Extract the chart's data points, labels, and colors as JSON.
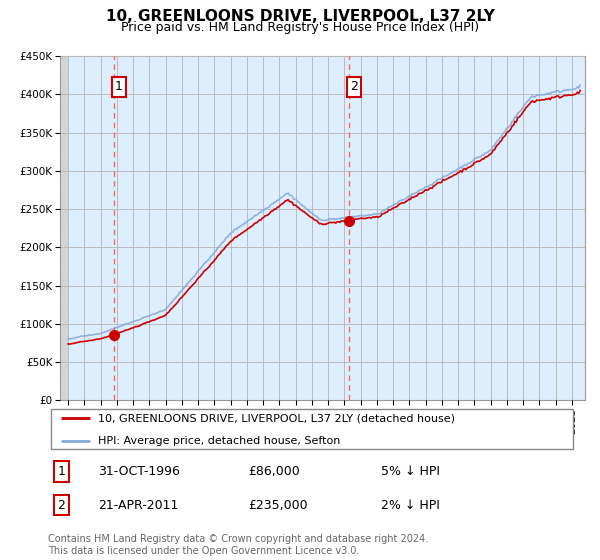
{
  "title": "10, GREENLOONS DRIVE, LIVERPOOL, L37 2LY",
  "subtitle": "Price paid vs. HM Land Registry's House Price Index (HPI)",
  "ylim": [
    0,
    450000
  ],
  "yticks": [
    0,
    50000,
    100000,
    150000,
    200000,
    250000,
    300000,
    350000,
    400000,
    450000
  ],
  "ytick_labels": [
    "£0",
    "£50K",
    "£100K",
    "£150K",
    "£200K",
    "£250K",
    "£300K",
    "£350K",
    "£400K",
    "£450K"
  ],
  "sale1_year": 1996.833,
  "sale1_price": 86000,
  "sale1_date": "31-OCT-1996",
  "sale1_price_str": "£86,000",
  "sale1_hpi": "5% ↓ HPI",
  "sale2_year": 2011.29,
  "sale2_price": 235000,
  "sale2_date": "21-APR-2011",
  "sale2_price_str": "£235,000",
  "sale2_hpi": "2% ↓ HPI",
  "line_color_property": "#cc0000",
  "line_color_hpi": "#88aadd",
  "vline_color": "#ff6666",
  "background_color": "#ffffff",
  "plot_bg_color": "#ddeeff",
  "grid_color": "#bbbbbb",
  "legend_line1": "10, GREENLOONS DRIVE, LIVERPOOL, L37 2LY (detached house)",
  "legend_line2": "HPI: Average price, detached house, Sefton",
  "footer": "Contains HM Land Registry data © Crown copyright and database right 2024.\nThis data is licensed under the Open Government Licence v3.0.",
  "title_fontsize": 11,
  "subtitle_fontsize": 9,
  "tick_fontsize": 7.5
}
